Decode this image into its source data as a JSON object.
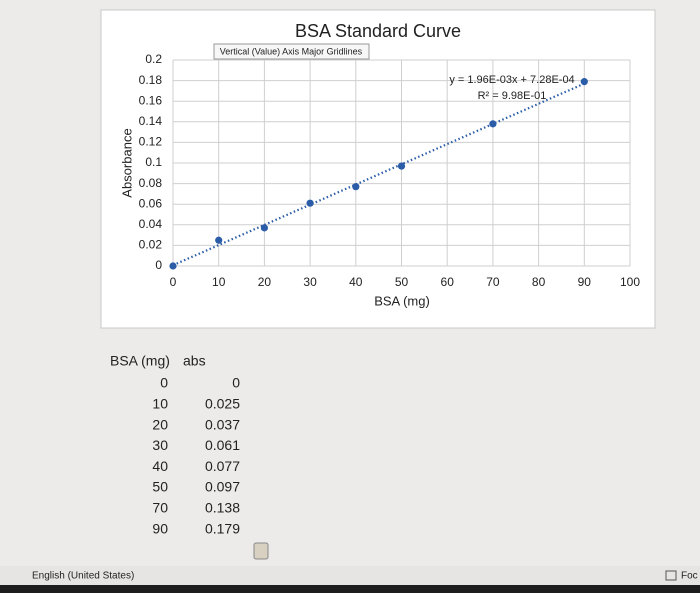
{
  "chart_data": {
    "type": "scatter",
    "title": "BSA Standard Curve",
    "x_label": "BSA (mg)",
    "y_label": "Absorbance",
    "x": [
      0,
      10,
      20,
      30,
      40,
      50,
      70,
      90
    ],
    "values": [
      0,
      0.025,
      0.037,
      0.061,
      0.077,
      0.097,
      0.138,
      0.179
    ],
    "color": "#2b5ca8",
    "xlim": [
      0,
      100
    ],
    "xticks": [
      0,
      10,
      20,
      30,
      40,
      50,
      60,
      70,
      80,
      90,
      100
    ],
    "ylim": [
      0,
      0.2
    ],
    "yticks": [
      0,
      0.02,
      0.04,
      0.06,
      0.08,
      0.1,
      0.12,
      0.14,
      0.16,
      0.18,
      0.2
    ],
    "grid": true,
    "trendline": {
      "slope": 0.00196,
      "intercept": 0.000728,
      "equation": "y = 1.96E-03x + 7.28E-04",
      "r_squared": "R² = 9.98E-01"
    },
    "tooltip": "Vertical (Value) Axis Major Gridlines"
  },
  "table": {
    "headers": [
      "BSA (mg)",
      "abs"
    ],
    "rows": [
      [
        0,
        0
      ],
      [
        10,
        0.025
      ],
      [
        20,
        0.037
      ],
      [
        30,
        0.061
      ],
      [
        40,
        0.077
      ],
      [
        50,
        0.097
      ],
      [
        70,
        0.138
      ],
      [
        90,
        0.179
      ]
    ]
  },
  "status_bar": {
    "language": "English (United States)",
    "focus": "Foc"
  }
}
